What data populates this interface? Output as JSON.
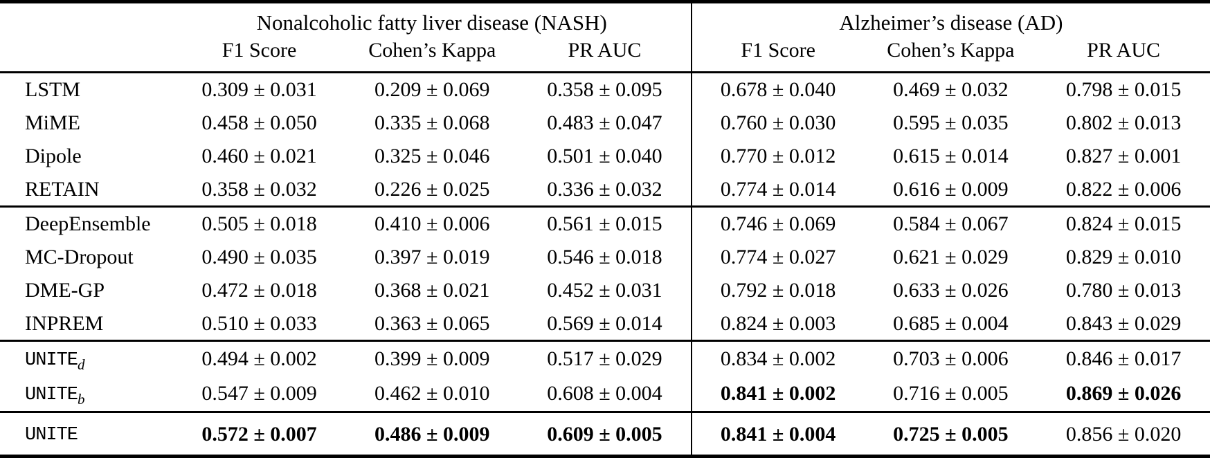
{
  "table": {
    "col_groups": [
      {
        "title": "Nonalcoholic fatty liver disease (NASH)",
        "metrics": [
          "F1 Score",
          "Cohen’s Kappa",
          "PR AUC"
        ]
      },
      {
        "title": "Alzheimer’s disease (AD)",
        "metrics": [
          "F1 Score",
          "Cohen’s Kappa",
          "PR AUC"
        ]
      }
    ],
    "row_groups": [
      {
        "name": "rnn-baselines",
        "rows": [
          {
            "method": {
              "label": "LSTM",
              "mono": false,
              "subscript": ""
            },
            "cells": [
              {
                "text": "0.309 ± 0.031",
                "bold": false
              },
              {
                "text": "0.209 ± 0.069",
                "bold": false
              },
              {
                "text": "0.358 ± 0.095",
                "bold": false
              },
              {
                "text": "0.678 ± 0.040",
                "bold": false
              },
              {
                "text": "0.469 ± 0.032",
                "bold": false
              },
              {
                "text": "0.798 ± 0.015",
                "bold": false
              }
            ]
          },
          {
            "method": {
              "label": "MiME",
              "mono": false,
              "subscript": ""
            },
            "cells": [
              {
                "text": "0.458 ± 0.050",
                "bold": false
              },
              {
                "text": "0.335 ± 0.068",
                "bold": false
              },
              {
                "text": "0.483 ± 0.047",
                "bold": false
              },
              {
                "text": "0.760 ± 0.030",
                "bold": false
              },
              {
                "text": "0.595 ± 0.035",
                "bold": false
              },
              {
                "text": "0.802 ± 0.013",
                "bold": false
              }
            ]
          },
          {
            "method": {
              "label": "Dipole",
              "mono": false,
              "subscript": ""
            },
            "cells": [
              {
                "text": "0.460 ± 0.021",
                "bold": false
              },
              {
                "text": "0.325 ± 0.046",
                "bold": false
              },
              {
                "text": "0.501 ± 0.040",
                "bold": false
              },
              {
                "text": "0.770 ± 0.012",
                "bold": false
              },
              {
                "text": "0.615 ± 0.014",
                "bold": false
              },
              {
                "text": "0.827 ± 0.001",
                "bold": false
              }
            ]
          },
          {
            "method": {
              "label": "RETAIN",
              "mono": false,
              "subscript": ""
            },
            "cells": [
              {
                "text": "0.358 ± 0.032",
                "bold": false
              },
              {
                "text": "0.226 ± 0.025",
                "bold": false
              },
              {
                "text": "0.336 ± 0.032",
                "bold": false
              },
              {
                "text": "0.774 ± 0.014",
                "bold": false
              },
              {
                "text": "0.616 ± 0.009",
                "bold": false
              },
              {
                "text": "0.822 ± 0.006",
                "bold": false
              }
            ]
          }
        ]
      },
      {
        "name": "uncertainty-baselines",
        "rows": [
          {
            "method": {
              "label": "DeepEnsemble",
              "mono": false,
              "subscript": ""
            },
            "cells": [
              {
                "text": "0.505 ± 0.018",
                "bold": false
              },
              {
                "text": "0.410 ± 0.006",
                "bold": false
              },
              {
                "text": "0.561 ± 0.015",
                "bold": false
              },
              {
                "text": "0.746 ± 0.069",
                "bold": false
              },
              {
                "text": "0.584 ± 0.067",
                "bold": false
              },
              {
                "text": "0.824 ± 0.015",
                "bold": false
              }
            ]
          },
          {
            "method": {
              "label": "MC-Dropout",
              "mono": false,
              "subscript": ""
            },
            "cells": [
              {
                "text": "0.490 ± 0.035",
                "bold": false
              },
              {
                "text": "0.397 ± 0.019",
                "bold": false
              },
              {
                "text": "0.546 ± 0.018",
                "bold": false
              },
              {
                "text": "0.774 ± 0.027",
                "bold": false
              },
              {
                "text": "0.621 ± 0.029",
                "bold": false
              },
              {
                "text": "0.829 ± 0.010",
                "bold": false
              }
            ]
          },
          {
            "method": {
              "label": "DME-GP",
              "mono": false,
              "subscript": ""
            },
            "cells": [
              {
                "text": "0.472 ± 0.018",
                "bold": false
              },
              {
                "text": "0.368 ± 0.021",
                "bold": false
              },
              {
                "text": "0.452 ± 0.031",
                "bold": false
              },
              {
                "text": "0.792 ± 0.018",
                "bold": false
              },
              {
                "text": "0.633 ± 0.026",
                "bold": false
              },
              {
                "text": "0.780 ± 0.013",
                "bold": false
              }
            ]
          },
          {
            "method": {
              "label": "INPREM",
              "mono": false,
              "subscript": ""
            },
            "cells": [
              {
                "text": "0.510 ± 0.033",
                "bold": false
              },
              {
                "text": "0.363 ± 0.065",
                "bold": false
              },
              {
                "text": "0.569 ± 0.014",
                "bold": false
              },
              {
                "text": "0.824 ± 0.003",
                "bold": false
              },
              {
                "text": "0.685 ± 0.004",
                "bold": false
              },
              {
                "text": "0.843 ± 0.029",
                "bold": false
              }
            ]
          }
        ]
      },
      {
        "name": "unite-ablations",
        "rows": [
          {
            "method": {
              "label": "UNITE",
              "mono": true,
              "subscript": "d"
            },
            "cells": [
              {
                "text": "0.494 ± 0.002",
                "bold": false
              },
              {
                "text": "0.399 ± 0.009",
                "bold": false
              },
              {
                "text": "0.517 ± 0.029",
                "bold": false
              },
              {
                "text": "0.834 ± 0.002",
                "bold": false
              },
              {
                "text": "0.703 ± 0.006",
                "bold": false
              },
              {
                "text": "0.846 ± 0.017",
                "bold": false
              }
            ]
          },
          {
            "method": {
              "label": "UNITE",
              "mono": true,
              "subscript": "b"
            },
            "cells": [
              {
                "text": "0.547 ± 0.009",
                "bold": false
              },
              {
                "text": "0.462 ± 0.010",
                "bold": false
              },
              {
                "text": "0.608 ± 0.004",
                "bold": false
              },
              {
                "text": "0.841 ± 0.002",
                "bold": true
              },
              {
                "text": "0.716 ± 0.005",
                "bold": false
              },
              {
                "text": "0.869 ± 0.026",
                "bold": true
              }
            ]
          }
        ]
      },
      {
        "name": "unite-full",
        "rows": [
          {
            "method": {
              "label": "UNITE",
              "mono": true,
              "subscript": ""
            },
            "cells": [
              {
                "text": "0.572 ± 0.007",
                "bold": true
              },
              {
                "text": "0.486 ± 0.009",
                "bold": true
              },
              {
                "text": "0.609 ± 0.005",
                "bold": true
              },
              {
                "text": "0.841 ± 0.004",
                "bold": true
              },
              {
                "text": "0.725 ± 0.005",
                "bold": true
              },
              {
                "text": "0.856 ± 0.020",
                "bold": false
              }
            ]
          }
        ]
      }
    ]
  }
}
